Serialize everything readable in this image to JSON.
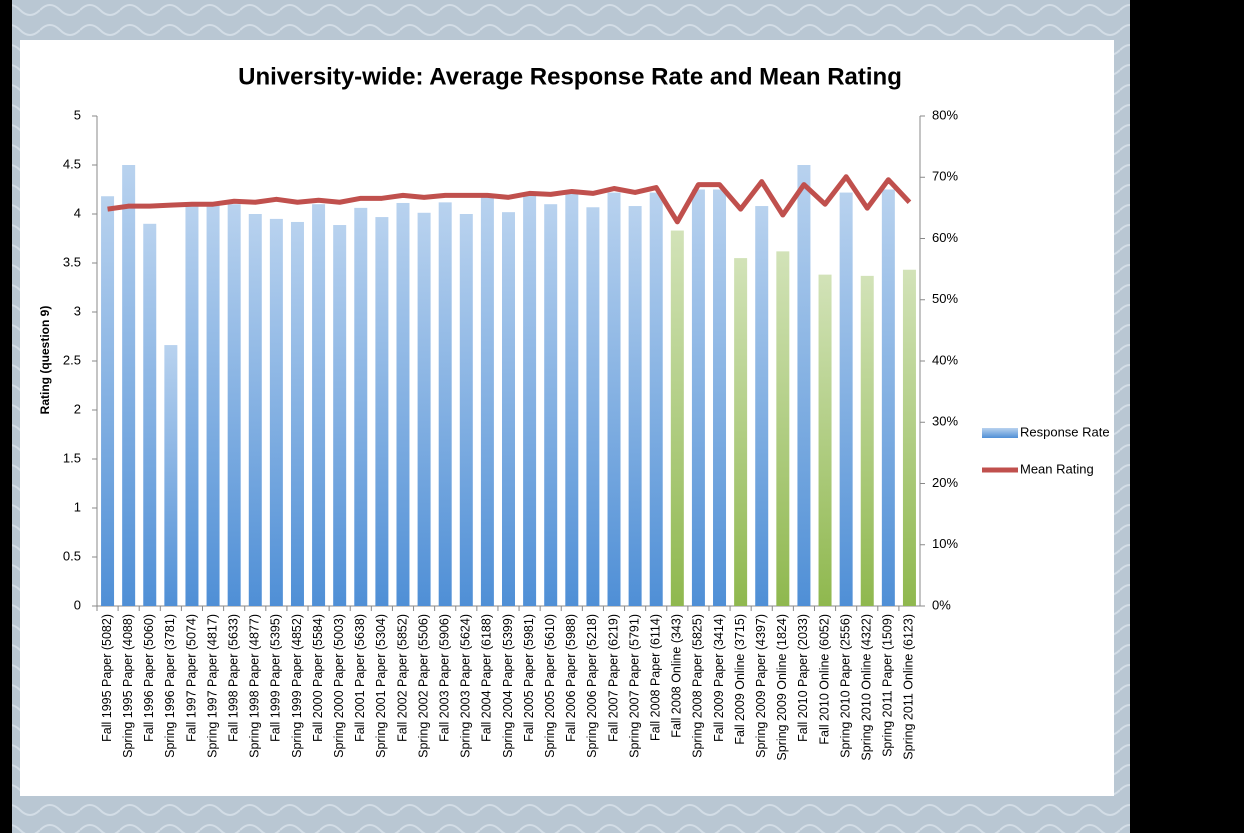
{
  "chart_data": {
    "type": "combo",
    "title": "University-wide: Average Response Rate and Mean Rating",
    "y_label": "Rating (question 9)",
    "categories": [
      "Fall 1995 Paper (5082)",
      "Spring 1995 Paper (4088)",
      "Fall 1996 Paper (5060)",
      "Spring 1996 Paper (3781)",
      "Fall 1997 Paper (5074)",
      "Spring 1997 Paper (4817)",
      "Fall 1998 Paper (5633)",
      "Spring 1998 Paper (4877)",
      "Fall 1999 Paper (5395)",
      "Spring 1999 Paper (4852)",
      "Fall 2000 Paper (5584)",
      "Spring 2000 Paper (5003)",
      "Fall 2001 Paper (5638)",
      "Spring 2001 Paper (5304)",
      "Fall 2002 Paper (5852)",
      "Spring 2002 Paper (5506)",
      "Fall 2003 Paper (5906)",
      "Spring 2003 Paper (5624)",
      "Fall 2004 Paper (6188)",
      "Spring 2004 Paper (5399)",
      "Fall 2005 Paper (5981)",
      "Spring 2005 Paper (5610)",
      "Fall 2006 Paper (5988)",
      "Spring 2006 Paper (5218)",
      "Fall 2007 Paper (6219)",
      "Spring 2007 Paper (5791)",
      "Fall 2008 Paper (6114)",
      "Fall 2008 Online (343)",
      "Spring 2008 Paper (5825)",
      "Fall 2009 Paper (3414)",
      "Fall 2009 Online (3715)",
      "Spring 2009 Paper (4397)",
      "Spring 2009 Online (1824)",
      "Fall 2010 Paper (2033)",
      "Fall 2010 Online (6052)",
      "Spring 2010 Paper (2556)",
      "Spring 2010 Online (4322)",
      "Spring 2011 Paper (1509)",
      "Spring 2011 Online (6123)"
    ],
    "series": [
      {
        "name": "Response Rate",
        "type": "bar",
        "axis": "y2",
        "color": "#4f8fd6",
        "colors": [
          "#4f8fd6",
          "#4f8fd6",
          "#4f8fd6",
          "#4f8fd6",
          "#4f8fd6",
          "#4f8fd6",
          "#4f8fd6",
          "#4f8fd6",
          "#4f8fd6",
          "#4f8fd6",
          "#4f8fd6",
          "#4f8fd6",
          "#4f8fd6",
          "#4f8fd6",
          "#4f8fd6",
          "#4f8fd6",
          "#4f8fd6",
          "#4f8fd6",
          "#4f8fd6",
          "#4f8fd6",
          "#4f8fd6",
          "#4f8fd6",
          "#4f8fd6",
          "#4f8fd6",
          "#4f8fd6",
          "#4f8fd6",
          "#4f8fd6",
          "#8fb84e",
          "#4f8fd6",
          "#4f8fd6",
          "#8fb84e",
          "#4f8fd6",
          "#8fb84e",
          "#4f8fd6",
          "#8fb84e",
          "#4f8fd6",
          "#8fb84e",
          "#4f8fd6",
          "#8fb84e"
        ],
        "values": [
          66.9,
          72,
          62.4,
          42.6,
          65.6,
          65.9,
          65.6,
          64,
          63.2,
          62.7,
          65.6,
          62.2,
          65,
          63.5,
          65.8,
          64.2,
          65.9,
          64,
          66.7,
          64.3,
          67.2,
          65.6,
          67.5,
          65.1,
          67.5,
          65.3,
          67.5,
          61.3,
          68,
          68,
          56.8,
          65.3,
          57.9,
          72,
          54.1,
          67.5,
          53.9,
          68,
          54.9
        ]
      },
      {
        "name": "Mean Rating",
        "type": "line",
        "color": "#c0504d",
        "values": [
          4.05,
          4.08,
          4.08,
          4.09,
          4.1,
          4.1,
          4.13,
          4.12,
          4.15,
          4.12,
          4.14,
          4.12,
          4.16,
          4.16,
          4.19,
          4.17,
          4.19,
          4.19,
          4.19,
          4.17,
          4.21,
          4.2,
          4.23,
          4.21,
          4.26,
          4.22,
          4.27,
          3.92,
          4.3,
          4.3,
          4.05,
          4.33,
          3.99,
          4.3,
          4.1,
          4.38,
          4.06,
          4.35,
          4.12
        ]
      }
    ],
    "ylim": [
      0,
      5
    ],
    "yticks": [
      0,
      0.5,
      1,
      1.5,
      2,
      2.5,
      3,
      3.5,
      4,
      4.5,
      5
    ],
    "y2lim": [
      0,
      80
    ],
    "y2ticks": [
      {
        "value": 0,
        "label": "0%"
      },
      {
        "value": 10,
        "label": "10%"
      },
      {
        "value": 20,
        "label": "20%"
      },
      {
        "value": 30,
        "label": "30%"
      },
      {
        "value": 40,
        "label": "40%"
      },
      {
        "value": 50,
        "label": "50%"
      },
      {
        "value": 60,
        "label": "60%"
      },
      {
        "value": 70,
        "label": "70%"
      },
      {
        "value": 80,
        "label": "80%"
      }
    ],
    "grid": false,
    "legend": "right"
  }
}
